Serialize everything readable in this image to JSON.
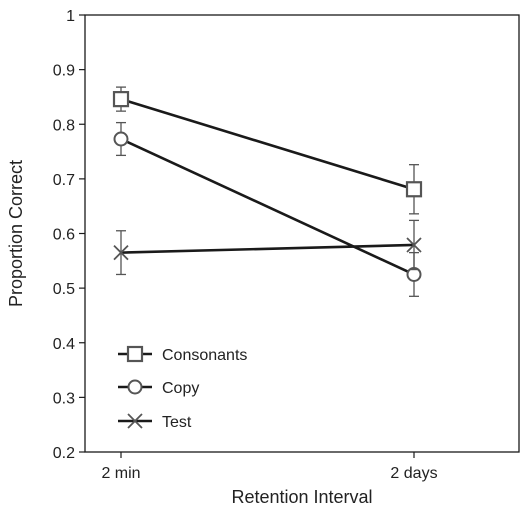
{
  "chart_data": {
    "type": "line",
    "title": "",
    "xlabel": "Retention Interval",
    "ylabel": "Proportion Correct",
    "categories": [
      "2 min",
      "2 days"
    ],
    "ylim": [
      0.2,
      1
    ],
    "yticks": [
      "0.2",
      "0.3",
      "0.4",
      "0.5",
      "0.6",
      "0.7",
      "0.8",
      "0.9",
      "1"
    ],
    "grid": false,
    "legend_position": "bottom-left",
    "series": [
      {
        "name": "Consonants",
        "marker": "square",
        "values": [
          0.846,
          0.681
        ],
        "error": [
          0.022,
          0.045
        ]
      },
      {
        "name": "Copy",
        "marker": "circle",
        "values": [
          0.773,
          0.525
        ],
        "error": [
          0.03,
          0.04
        ]
      },
      {
        "name": "Test",
        "marker": "x",
        "values": [
          0.565,
          0.579
        ],
        "error": [
          0.04,
          0.045
        ]
      }
    ],
    "colors": {
      "line": "#1a1a1a",
      "marker_stroke": "#555555",
      "axis": "#1a1a1a"
    }
  }
}
